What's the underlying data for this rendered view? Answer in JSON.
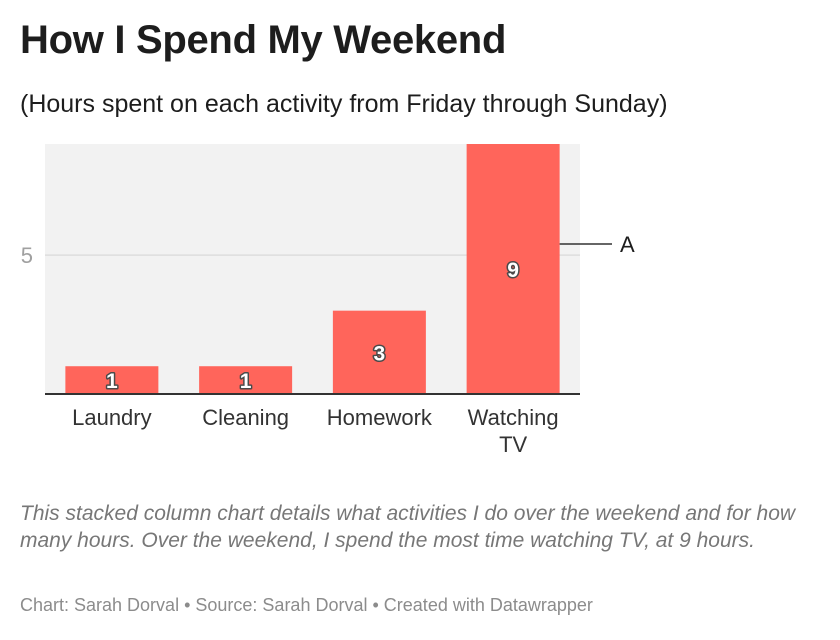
{
  "chart_data": {
    "type": "bar",
    "title": "How I Spend My Weekend",
    "subtitle": "(Hours spent on each activity from Friday through Sunday)",
    "categories": [
      "Laundry",
      "Cleaning",
      "Homework",
      "Watching TV"
    ],
    "values": [
      1,
      1,
      3,
      9
    ],
    "data_labels": [
      "1",
      "1",
      "3",
      "9"
    ],
    "y_ticks": [
      5
    ],
    "ylim": [
      0,
      9
    ],
    "grid": true,
    "annotation": {
      "text": "A",
      "category": "Watching TV",
      "value": 5.4
    },
    "colors": {
      "bar": "#ff655b",
      "plot_background": "#f2f2f2",
      "gridline": "#dddddd",
      "axis": "#333333"
    }
  },
  "description": "This stacked column chart details what activities I do over the weekend and for how many hours. Over the weekend, I spend the most time watching TV, at 9 hours.",
  "footer": {
    "chart": "Chart: Sarah Dorval",
    "source": "Source: Sarah Dorval",
    "created": "Created with Datawrapper",
    "separator": "•"
  }
}
